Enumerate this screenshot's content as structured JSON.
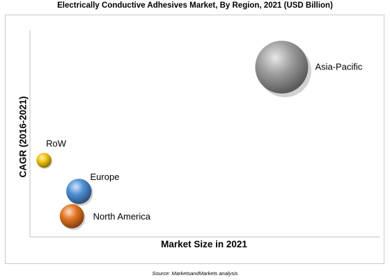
{
  "chart_data": {
    "type": "bubble",
    "title": "Electrically Conductive Adhesives Market, By Region, 2021 (USD Billion)",
    "xlabel": "Market Size in 2021",
    "ylabel": "CAGR (2016-2021)",
    "grid": false,
    "axis_ticks": false,
    "points": [
      {
        "label": "Asia-Pacific",
        "x": 0.72,
        "y": 0.82,
        "size": 1.0,
        "color": "#9e9e9e"
      },
      {
        "label": "RoW",
        "x": 0.04,
        "y": 0.37,
        "size": 0.08,
        "color": "#f0c20a"
      },
      {
        "label": "Europe",
        "x": 0.14,
        "y": 0.22,
        "size": 0.23,
        "color": "#4f8fd6"
      },
      {
        "label": "North America",
        "x": 0.12,
        "y": 0.1,
        "size": 0.21,
        "color": "#e2731f"
      }
    ]
  },
  "source": "Source: MarketsandMarkets analysis"
}
